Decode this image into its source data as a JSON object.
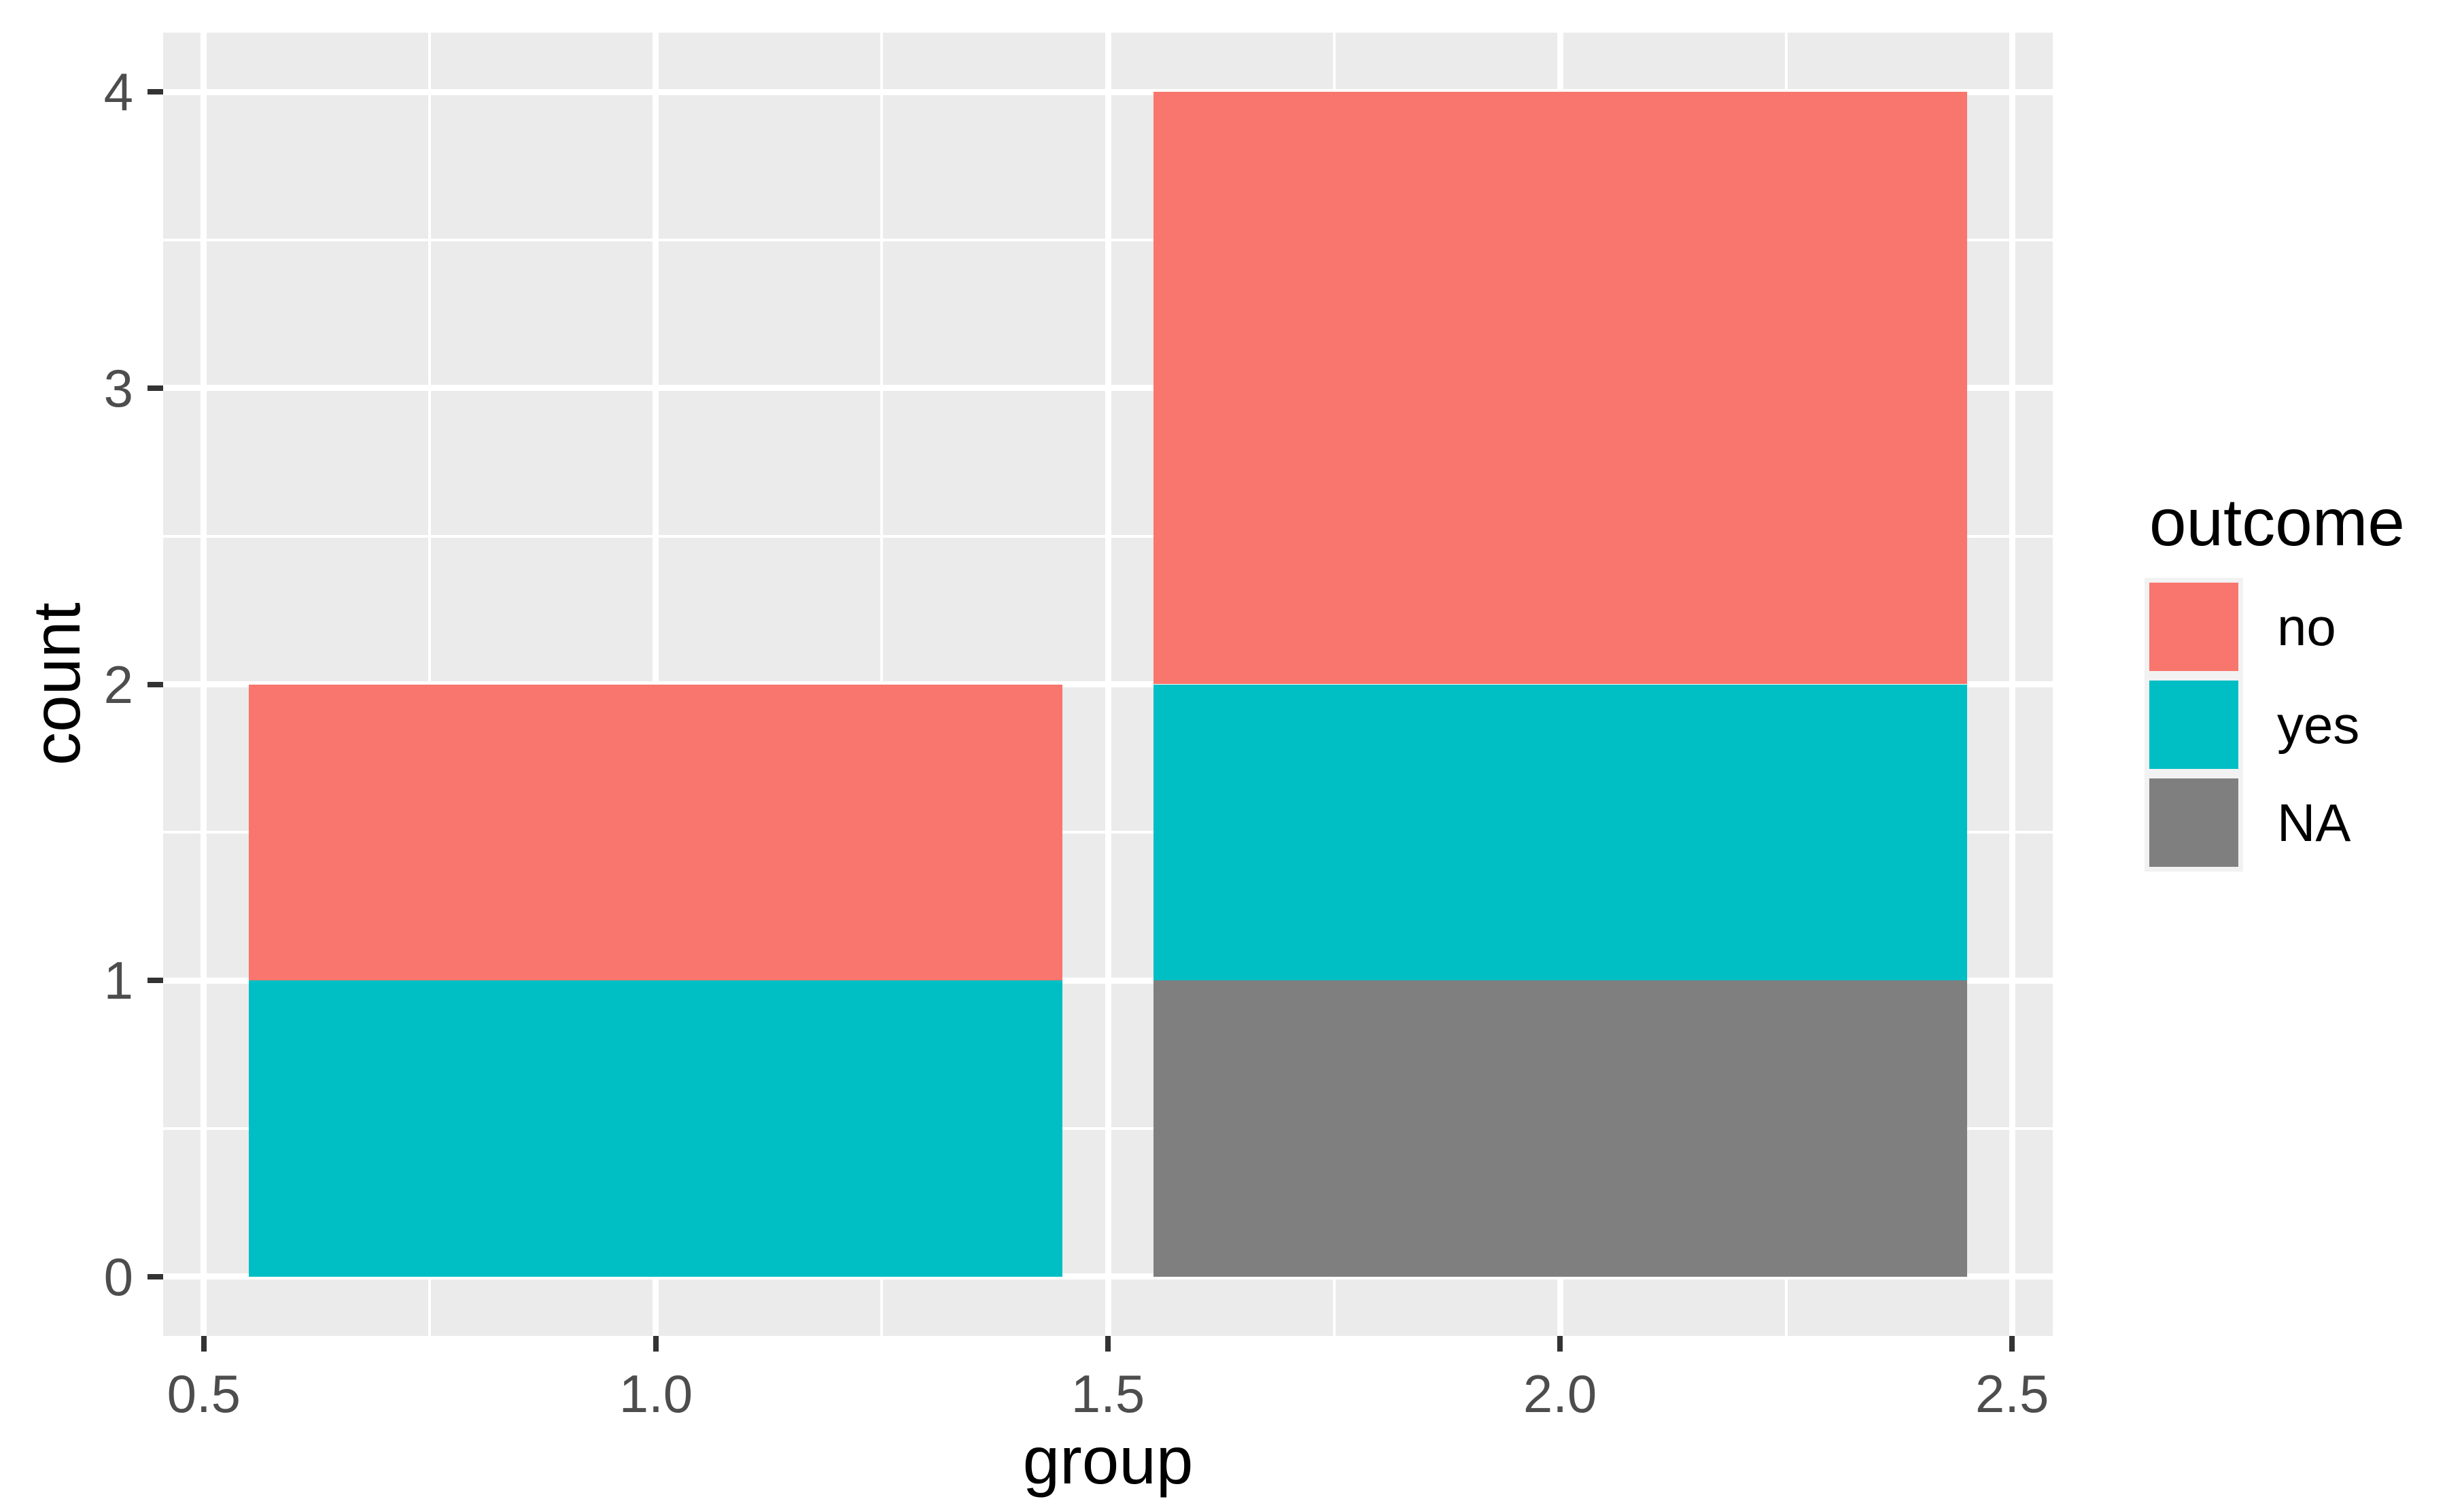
{
  "legend": {
    "title": "outcome",
    "items": [
      {
        "label": "no",
        "color": "#F8766D"
      },
      {
        "label": "yes",
        "color": "#00BFC4"
      },
      {
        "label": "NA",
        "color": "#7F7F7F"
      }
    ]
  },
  "chart_data": {
    "type": "bar",
    "stacked": true,
    "title": "",
    "xlabel": "group",
    "ylabel": "count",
    "x": [
      1,
      2
    ],
    "bar_width": 0.9,
    "series": [
      {
        "name": "no",
        "color": "#F8766D",
        "values": [
          1,
          2
        ]
      },
      {
        "name": "yes",
        "color": "#00BFC4",
        "values": [
          1,
          1
        ]
      },
      {
        "name": "NA",
        "color": "#7F7F7F",
        "values": [
          0,
          1
        ]
      }
    ],
    "stack_top_to_bottom": [
      "no",
      "yes",
      "NA"
    ],
    "x_ticks": {
      "values": [
        0.5,
        1.0,
        1.5,
        2.0,
        2.5
      ],
      "labels": [
        "0.5",
        "1.0",
        "1.5",
        "2.0",
        "2.5"
      ]
    },
    "y_ticks": {
      "values": [
        0,
        1,
        2,
        3,
        4
      ],
      "labels": [
        "0",
        "1",
        "2",
        "3",
        "4"
      ]
    },
    "xlim": [
      0.455,
      2.545
    ],
    "ylim": [
      -0.2,
      4.2
    ],
    "grid": {
      "major": true,
      "minor": true
    },
    "legend_position": "right",
    "colors": {
      "background": "#FFFFFF",
      "panel_bg": "#EBEBEB",
      "grid": "#FFFFFF",
      "tick_mark": "#333333",
      "axis_text": "#4D4D4D",
      "axis_title": "#000000",
      "legend_key_bg": "#F2F2F2"
    }
  }
}
